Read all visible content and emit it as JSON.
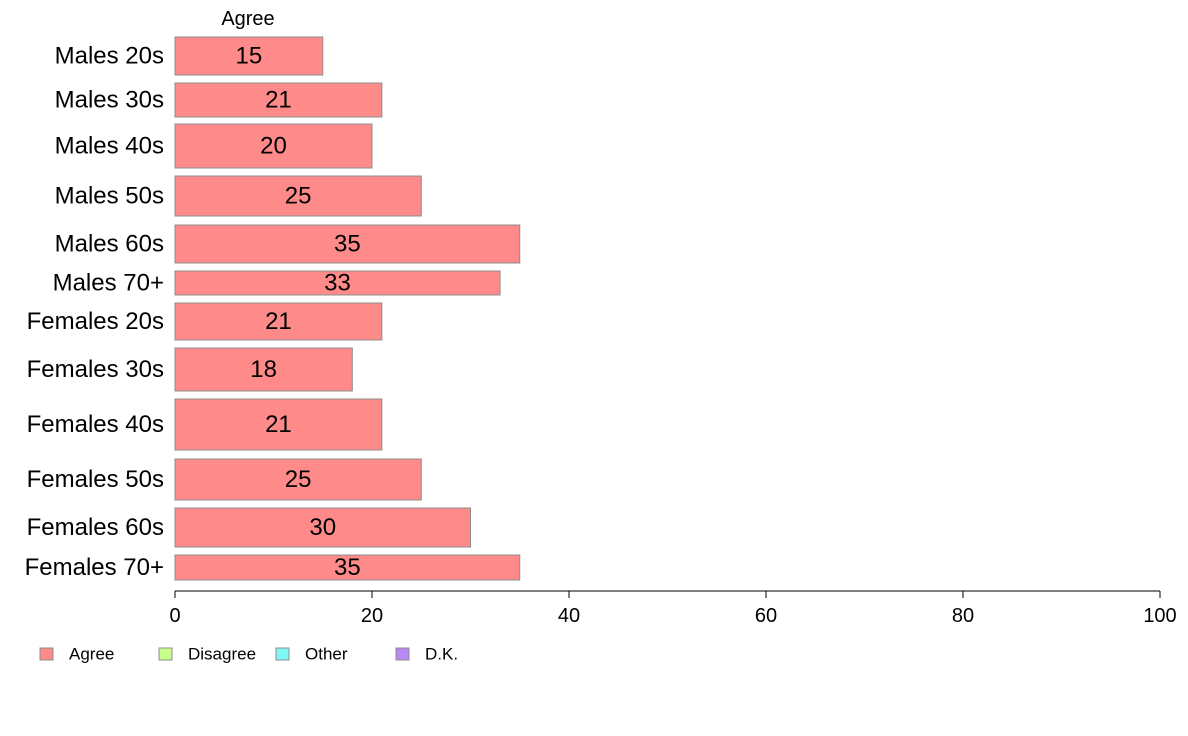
{
  "chart_data": {
    "type": "bar",
    "orientation": "horizontal",
    "stacked": true,
    "column_header": "Agree",
    "categories": [
      "Males 20s",
      "Males 30s",
      "Males 40s",
      "Males 50s",
      "Males 60s",
      "Males 70+",
      "Females 20s",
      "Females 30s",
      "Females 40s",
      "Females 50s",
      "Females 60s",
      "Females 70+"
    ],
    "series": [
      {
        "name": "Agree",
        "color": "#ff8a8a",
        "values": [
          15,
          21,
          20,
          25,
          35,
          33,
          21,
          18,
          21,
          25,
          30,
          35
        ]
      },
      {
        "name": "Disagree",
        "color": "#c8ff8c",
        "values": [
          null,
          null,
          null,
          null,
          null,
          null,
          null,
          null,
          null,
          null,
          null,
          null
        ]
      },
      {
        "name": "Other",
        "color": "#7ff7f7",
        "values": [
          null,
          null,
          null,
          null,
          null,
          null,
          null,
          null,
          null,
          null,
          null,
          null
        ]
      },
      {
        "name": "D.K.",
        "color": "#b889f5",
        "values": [
          null,
          null,
          null,
          null,
          null,
          null,
          null,
          null,
          null,
          null,
          null,
          null
        ]
      }
    ],
    "xlim": [
      0,
      100
    ],
    "xticks": [
      0,
      20,
      40,
      60,
      80,
      100
    ],
    "title": "",
    "xlabel": "",
    "ylabel": "",
    "grid": false,
    "legend_position": "bottom-left"
  }
}
